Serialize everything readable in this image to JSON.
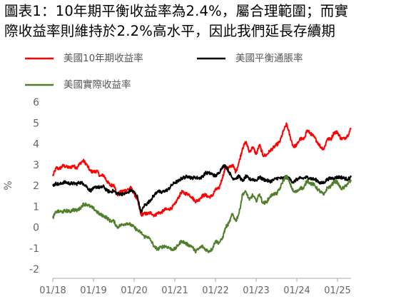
{
  "header": {
    "title_line1": "圖表1：10年期平衡收益率為2.4%，屬合理範圍；而實",
    "title_line2": "際收益率則維持於2.2%高水平，因此我們延長存續期"
  },
  "chart_data": {
    "type": "line",
    "title": "圖表1：10年期平衡收益率為2.4%，屬合理範圍；而實際收益率則維持於2.2%高水平，因此我們延長存續期",
    "xlabel": "",
    "ylabel": "%",
    "ylim": [
      -2,
      6
    ],
    "yticks": [
      -2,
      -1,
      0,
      1,
      2,
      3,
      4,
      5,
      6
    ],
    "xticks": [
      "01/18",
      "01/19",
      "01/20",
      "01/21",
      "01/22",
      "01/23",
      "01/24",
      "01/25"
    ],
    "xlim": [
      "2018-01",
      "2025-05"
    ],
    "grid": false,
    "legend": "top",
    "series": [
      {
        "name": "美國10年期收益率",
        "color": "#ff0000",
        "points": [
          [
            "2018-01",
            2.45
          ],
          [
            "2018-02",
            2.85
          ],
          [
            "2018-03",
            2.8
          ],
          [
            "2018-04",
            2.95
          ],
          [
            "2018-05",
            2.9
          ],
          [
            "2018-06",
            2.85
          ],
          [
            "2018-07",
            2.95
          ],
          [
            "2018-08",
            2.85
          ],
          [
            "2018-09",
            3.05
          ],
          [
            "2018-10",
            3.2
          ],
          [
            "2018-11",
            3.0
          ],
          [
            "2018-12",
            2.7
          ],
          [
            "2019-01",
            2.65
          ],
          [
            "2019-02",
            2.7
          ],
          [
            "2019-03",
            2.45
          ],
          [
            "2019-04",
            2.5
          ],
          [
            "2019-05",
            2.2
          ],
          [
            "2019-06",
            2.0
          ],
          [
            "2019-07",
            2.05
          ],
          [
            "2019-08",
            1.55
          ],
          [
            "2019-09",
            1.7
          ],
          [
            "2019-10",
            1.75
          ],
          [
            "2019-11",
            1.8
          ],
          [
            "2019-12",
            1.9
          ],
          [
            "2020-01",
            1.6
          ],
          [
            "2020-02",
            1.3
          ],
          [
            "2020-03",
            0.6
          ],
          [
            "2020-04",
            0.65
          ],
          [
            "2020-05",
            0.65
          ],
          [
            "2020-06",
            0.7
          ],
          [
            "2020-07",
            0.55
          ],
          [
            "2020-08",
            0.7
          ],
          [
            "2020-09",
            0.7
          ],
          [
            "2020-10",
            0.85
          ],
          [
            "2020-11",
            0.85
          ],
          [
            "2020-12",
            0.92
          ],
          [
            "2021-01",
            1.1
          ],
          [
            "2021-02",
            1.4
          ],
          [
            "2021-03",
            1.7
          ],
          [
            "2021-04",
            1.62
          ],
          [
            "2021-05",
            1.6
          ],
          [
            "2021-06",
            1.45
          ],
          [
            "2021-07",
            1.25
          ],
          [
            "2021-08",
            1.3
          ],
          [
            "2021-09",
            1.5
          ],
          [
            "2021-10",
            1.55
          ],
          [
            "2021-11",
            1.45
          ],
          [
            "2021-12",
            1.5
          ],
          [
            "2022-01",
            1.8
          ],
          [
            "2022-02",
            1.85
          ],
          [
            "2022-03",
            2.35
          ],
          [
            "2022-04",
            2.9
          ],
          [
            "2022-05",
            2.85
          ],
          [
            "2022-06",
            3.0
          ],
          [
            "2022-07",
            2.65
          ],
          [
            "2022-08",
            3.15
          ],
          [
            "2022-09",
            3.8
          ],
          [
            "2022-10",
            4.1
          ],
          [
            "2022-11",
            3.6
          ],
          [
            "2022-12",
            3.85
          ],
          [
            "2023-01",
            3.5
          ],
          [
            "2023-02",
            3.95
          ],
          [
            "2023-03",
            3.45
          ],
          [
            "2023-04",
            3.45
          ],
          [
            "2023-05",
            3.65
          ],
          [
            "2023-06",
            3.8
          ],
          [
            "2023-07",
            3.95
          ],
          [
            "2023-08",
            4.1
          ],
          [
            "2023-09",
            4.6
          ],
          [
            "2023-10",
            4.95
          ],
          [
            "2023-11",
            4.35
          ],
          [
            "2023-12",
            3.85
          ],
          [
            "2024-01",
            3.95
          ],
          [
            "2024-02",
            4.25
          ],
          [
            "2024-03",
            4.2
          ],
          [
            "2024-04",
            4.65
          ],
          [
            "2024-05",
            4.5
          ],
          [
            "2024-06",
            4.35
          ],
          [
            "2024-07",
            4.1
          ],
          [
            "2024-08",
            3.85
          ],
          [
            "2024-09",
            3.75
          ],
          [
            "2024-10",
            4.25
          ],
          [
            "2024-11",
            4.2
          ],
          [
            "2024-12",
            4.55
          ],
          [
            "2025-01",
            4.55
          ],
          [
            "2025-02",
            4.25
          ],
          [
            "2025-03",
            4.25
          ],
          [
            "2025-04",
            4.4
          ],
          [
            "2025-05",
            4.75
          ]
        ]
      },
      {
        "name": "美國平衡通脹率",
        "color": "#000000",
        "points": [
          [
            "2018-01",
            2.0
          ],
          [
            "2018-02",
            2.1
          ],
          [
            "2018-03",
            2.05
          ],
          [
            "2018-04",
            2.15
          ],
          [
            "2018-05",
            2.15
          ],
          [
            "2018-06",
            2.1
          ],
          [
            "2018-07",
            2.1
          ],
          [
            "2018-08",
            2.08
          ],
          [
            "2018-09",
            2.15
          ],
          [
            "2018-10",
            2.1
          ],
          [
            "2018-11",
            1.95
          ],
          [
            "2018-12",
            1.75
          ],
          [
            "2019-01",
            1.85
          ],
          [
            "2019-02",
            1.95
          ],
          [
            "2019-03",
            1.9
          ],
          [
            "2019-04",
            1.95
          ],
          [
            "2019-05",
            1.75
          ],
          [
            "2019-06",
            1.7
          ],
          [
            "2019-07",
            1.75
          ],
          [
            "2019-08",
            1.6
          ],
          [
            "2019-09",
            1.6
          ],
          [
            "2019-10",
            1.6
          ],
          [
            "2019-11",
            1.65
          ],
          [
            "2019-12",
            1.78
          ],
          [
            "2020-01",
            1.68
          ],
          [
            "2020-02",
            1.45
          ],
          [
            "2020-03",
            0.7
          ],
          [
            "2020-04",
            1.05
          ],
          [
            "2020-05",
            1.15
          ],
          [
            "2020-06",
            1.35
          ],
          [
            "2020-07",
            1.55
          ],
          [
            "2020-08",
            1.75
          ],
          [
            "2020-09",
            1.65
          ],
          [
            "2020-10",
            1.75
          ],
          [
            "2020-11",
            1.8
          ],
          [
            "2020-12",
            2.0
          ],
          [
            "2021-01",
            2.15
          ],
          [
            "2021-02",
            2.2
          ],
          [
            "2021-03",
            2.35
          ],
          [
            "2021-04",
            2.4
          ],
          [
            "2021-05",
            2.45
          ],
          [
            "2021-06",
            2.35
          ],
          [
            "2021-07",
            2.4
          ],
          [
            "2021-08",
            2.35
          ],
          [
            "2021-09",
            2.4
          ],
          [
            "2021-10",
            2.6
          ],
          [
            "2021-11",
            2.6
          ],
          [
            "2021-12",
            2.55
          ],
          [
            "2022-01",
            2.45
          ],
          [
            "2022-02",
            2.6
          ],
          [
            "2022-03",
            2.9
          ],
          [
            "2022-04",
            2.95
          ],
          [
            "2022-05",
            2.65
          ],
          [
            "2022-06",
            2.35
          ],
          [
            "2022-07",
            2.35
          ],
          [
            "2022-08",
            2.45
          ],
          [
            "2022-09",
            2.2
          ],
          [
            "2022-10",
            2.45
          ],
          [
            "2022-11",
            2.3
          ],
          [
            "2022-12",
            2.3
          ],
          [
            "2023-01",
            2.25
          ],
          [
            "2023-02",
            2.4
          ],
          [
            "2023-03",
            2.3
          ],
          [
            "2023-04",
            2.25
          ],
          [
            "2023-05",
            2.2
          ],
          [
            "2023-06",
            2.25
          ],
          [
            "2023-07",
            2.35
          ],
          [
            "2023-08",
            2.35
          ],
          [
            "2023-09",
            2.35
          ],
          [
            "2023-10",
            2.4
          ],
          [
            "2023-11",
            2.3
          ],
          [
            "2023-12",
            2.15
          ],
          [
            "2024-01",
            2.3
          ],
          [
            "2024-02",
            2.35
          ],
          [
            "2024-03",
            2.35
          ],
          [
            "2024-04",
            2.4
          ],
          [
            "2024-05",
            2.35
          ],
          [
            "2024-06",
            2.3
          ],
          [
            "2024-07",
            2.25
          ],
          [
            "2024-08",
            2.1
          ],
          [
            "2024-09",
            2.15
          ],
          [
            "2024-10",
            2.3
          ],
          [
            "2024-11",
            2.35
          ],
          [
            "2024-12",
            2.35
          ],
          [
            "2025-01",
            2.4
          ],
          [
            "2025-02",
            2.4
          ],
          [
            "2025-03",
            2.35
          ],
          [
            "2025-04",
            2.3
          ],
          [
            "2025-05",
            2.4
          ]
        ]
      },
      {
        "name": "美國實際收益率",
        "color": "#4f7f2a",
        "points": [
          [
            "2018-01",
            0.45
          ],
          [
            "2018-02",
            0.75
          ],
          [
            "2018-03",
            0.75
          ],
          [
            "2018-04",
            0.75
          ],
          [
            "2018-05",
            0.8
          ],
          [
            "2018-06",
            0.75
          ],
          [
            "2018-07",
            0.85
          ],
          [
            "2018-08",
            0.8
          ],
          [
            "2018-09",
            0.9
          ],
          [
            "2018-10",
            1.1
          ],
          [
            "2018-11",
            1.1
          ],
          [
            "2018-12",
            1.0
          ],
          [
            "2019-01",
            0.9
          ],
          [
            "2019-02",
            0.75
          ],
          [
            "2019-03",
            0.6
          ],
          [
            "2019-04",
            0.55
          ],
          [
            "2019-05",
            0.45
          ],
          [
            "2019-06",
            0.3
          ],
          [
            "2019-07",
            0.3
          ],
          [
            "2019-08",
            0.0
          ],
          [
            "2019-09",
            0.1
          ],
          [
            "2019-10",
            0.15
          ],
          [
            "2019-11",
            0.2
          ],
          [
            "2019-12",
            0.12
          ],
          [
            "2020-01",
            0.0
          ],
          [
            "2020-02",
            -0.15
          ],
          [
            "2020-03",
            -0.25
          ],
          [
            "2020-04",
            -0.45
          ],
          [
            "2020-05",
            -0.45
          ],
          [
            "2020-06",
            -0.65
          ],
          [
            "2020-07",
            -0.95
          ],
          [
            "2020-08",
            -1.05
          ],
          [
            "2020-09",
            -0.95
          ],
          [
            "2020-10",
            -0.9
          ],
          [
            "2020-11",
            -0.95
          ],
          [
            "2020-12",
            -1.05
          ],
          [
            "2021-01",
            -1.05
          ],
          [
            "2021-02",
            -0.85
          ],
          [
            "2021-03",
            -0.65
          ],
          [
            "2021-04",
            -0.75
          ],
          [
            "2021-05",
            -0.85
          ],
          [
            "2021-06",
            -0.9
          ],
          [
            "2021-07",
            -1.15
          ],
          [
            "2021-08",
            -1.05
          ],
          [
            "2021-09",
            -0.9
          ],
          [
            "2021-10",
            -1.05
          ],
          [
            "2021-11",
            -1.15
          ],
          [
            "2021-12",
            -1.05
          ],
          [
            "2022-01",
            -0.65
          ],
          [
            "2022-02",
            -0.75
          ],
          [
            "2022-03",
            -0.55
          ],
          [
            "2022-04",
            0.0
          ],
          [
            "2022-05",
            0.2
          ],
          [
            "2022-06",
            0.65
          ],
          [
            "2022-07",
            0.3
          ],
          [
            "2022-08",
            0.7
          ],
          [
            "2022-09",
            1.6
          ],
          [
            "2022-10",
            1.7
          ],
          [
            "2022-11",
            1.3
          ],
          [
            "2022-12",
            1.55
          ],
          [
            "2023-01",
            1.25
          ],
          [
            "2023-02",
            1.6
          ],
          [
            "2023-03",
            1.15
          ],
          [
            "2023-04",
            1.2
          ],
          [
            "2023-05",
            1.45
          ],
          [
            "2023-06",
            1.6
          ],
          [
            "2023-07",
            1.6
          ],
          [
            "2023-08",
            1.85
          ],
          [
            "2023-09",
            2.25
          ],
          [
            "2023-10",
            2.45
          ],
          [
            "2023-11",
            2.1
          ],
          [
            "2023-12",
            1.7
          ],
          [
            "2024-01",
            1.7
          ],
          [
            "2024-02",
            1.9
          ],
          [
            "2024-03",
            1.85
          ],
          [
            "2024-04",
            2.25
          ],
          [
            "2024-05",
            2.1
          ],
          [
            "2024-06",
            2.05
          ],
          [
            "2024-07",
            1.85
          ],
          [
            "2024-08",
            1.7
          ],
          [
            "2024-09",
            1.55
          ],
          [
            "2024-10",
            1.9
          ],
          [
            "2024-11",
            1.95
          ],
          [
            "2024-12",
            2.2
          ],
          [
            "2025-01",
            2.15
          ],
          [
            "2025-02",
            1.85
          ],
          [
            "2025-03",
            1.9
          ],
          [
            "2025-04",
            2.1
          ],
          [
            "2025-05",
            2.2
          ]
        ]
      }
    ]
  }
}
